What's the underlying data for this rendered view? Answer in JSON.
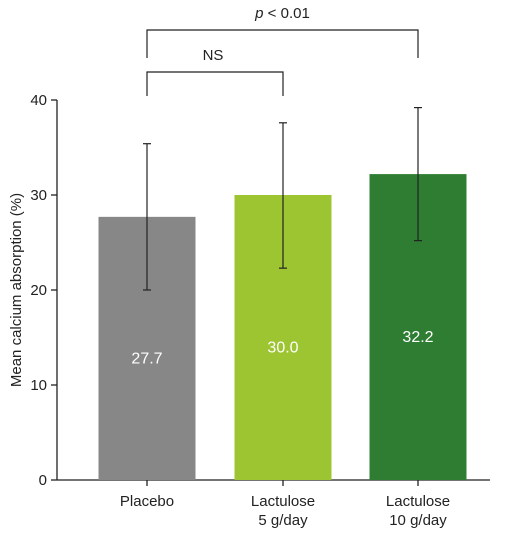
{
  "chart_data": {
    "type": "bar",
    "title": "",
    "xlabel": "",
    "ylabel": "Mean calcium absorption (%)",
    "ylim": [
      0,
      40
    ],
    "yticks": [
      0,
      10,
      20,
      30,
      40
    ],
    "categories": [
      {
        "lines": [
          "Placebo"
        ]
      },
      {
        "lines": [
          "Lactulose",
          "5 g/day"
        ]
      },
      {
        "lines": [
          "Lactulose",
          "10 g/day"
        ]
      }
    ],
    "values": [
      27.7,
      30.0,
      32.2
    ],
    "value_labels": [
      "27.7",
      "30.0",
      "32.2"
    ],
    "error_bars": [
      {
        "low": 20.0,
        "high": 35.4
      },
      {
        "low": 22.3,
        "high": 37.6
      },
      {
        "low": 25.2,
        "high": 39.2
      }
    ],
    "colors": [
      "#878787",
      "#9dc431",
      "#2e7d32"
    ],
    "significance": [
      {
        "from": 0,
        "to": 1,
        "label": "NS",
        "italic_prefix": ""
      },
      {
        "from": 0,
        "to": 2,
        "label": " < 0.01",
        "italic_prefix": "p"
      }
    ]
  }
}
